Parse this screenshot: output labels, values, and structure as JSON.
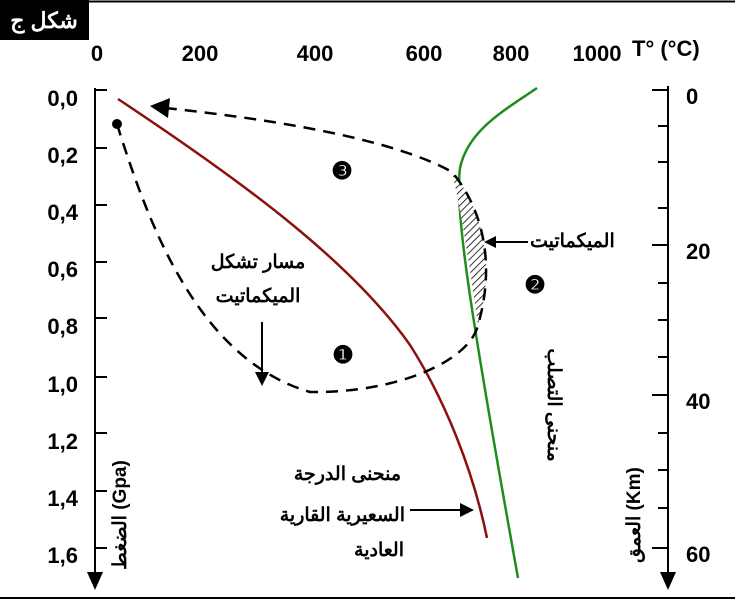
{
  "figure_label": "شكل ج",
  "top_axis": {
    "ticks": [
      "0",
      "200",
      "400",
      "600",
      "800",
      "1000"
    ],
    "title": "T° (°C)"
  },
  "left_axis": {
    "ticks": [
      "0,0",
      "0,2",
      "0,4",
      "0,6",
      "0,8",
      "1,0",
      "1,2",
      "1,4",
      "1,6"
    ],
    "title": "الضغط (Gpa)"
  },
  "right_axis": {
    "ticks": [
      "0",
      "20",
      "40",
      "60"
    ],
    "title": "العمق (Km)"
  },
  "labels": {
    "migmatite": "الميكماتيت",
    "path_line1": "مسار تشكل",
    "path_line2": "الميكماتيت",
    "solidus": "منحنى التصلب",
    "geotherm_line1": "منحنى الدرجة",
    "geotherm_line2": "السعيرية القارية",
    "geotherm_line3": "العادية"
  },
  "stages": [
    "❶",
    "❷",
    "❸"
  ],
  "colors": {
    "geotherm": "#8B1010",
    "solidus": "#1E8C1E",
    "path": "#000000",
    "figure_label_bg": "#000000",
    "figure_label_text": "#ffffff"
  }
}
